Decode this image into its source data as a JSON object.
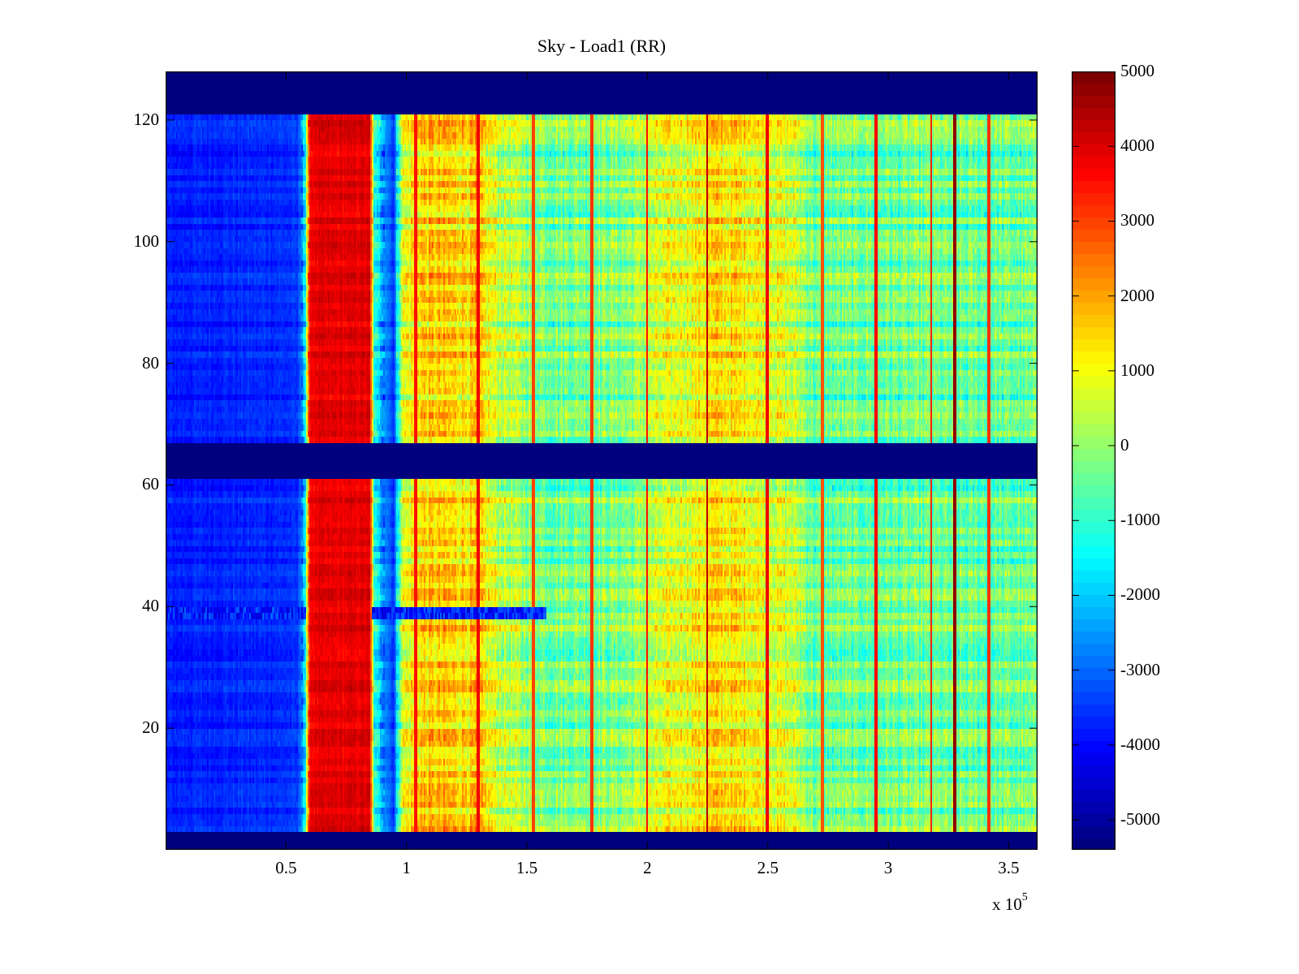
{
  "chart_data": {
    "type": "heatmap",
    "title": "Sky - Load1 (RR)",
    "xlabel": "",
    "ylabel": "",
    "x_multiplier_label": "x 10",
    "x_multiplier_exponent": "5",
    "xlim": [
      0,
      3.62
    ],
    "ylim": [
      0,
      128
    ],
    "x_ticks": [
      0.5,
      1,
      1.5,
      2,
      2.5,
      3,
      3.5
    ],
    "x_tick_labels": [
      "0.5",
      "1",
      "1.5",
      "2",
      "2.5",
      "3",
      "3.5"
    ],
    "y_ticks": [
      20,
      40,
      60,
      80,
      100,
      120
    ],
    "y_tick_labels": [
      "20",
      "40",
      "60",
      "80",
      "100",
      "120"
    ],
    "colormap": "jet",
    "clim": [
      -5400,
      5000
    ],
    "colorbar": {
      "ticks": [
        5000,
        4000,
        3000,
        2000,
        1000,
        0,
        -1000,
        -2000,
        -3000,
        -4000,
        -5000
      ],
      "tick_labels": [
        "5000",
        "4000",
        "3000",
        "2000",
        "1000",
        "0",
        "-1000",
        "-2000",
        "-3000",
        "-4000",
        "-5000"
      ],
      "placement": "right"
    },
    "empty_row_bands": [
      [
        0,
        3
      ],
      [
        61,
        67
      ],
      [
        121,
        128
      ]
    ],
    "column_profile": {
      "x": [
        0,
        0.55,
        0.58,
        0.6,
        0.85,
        0.87,
        0.95,
        0.98,
        1.05,
        1.3,
        1.38,
        1.6,
        1.9,
        2.1,
        2.3,
        2.5,
        2.62,
        2.7,
        3.0,
        3.3,
        3.62
      ],
      "value": [
        -3800,
        -3600,
        -1500,
        3800,
        3900,
        -1500,
        -3500,
        500,
        1500,
        1400,
        500,
        -300,
        -200,
        700,
        1300,
        900,
        400,
        -500,
        -400,
        -500,
        -500
      ]
    },
    "vertical_lines": {
      "x": [
        1.04,
        1.3,
        1.53,
        1.77,
        2.0,
        2.25,
        2.5,
        2.73,
        2.95,
        3.18,
        3.28,
        3.42
      ],
      "value": [
        3500,
        3800,
        3000,
        3200,
        3400,
        4200,
        3800,
        2800,
        3600,
        3300,
        4800,
        3200
      ]
    },
    "anomalous_row": {
      "y": 39,
      "value": -4500,
      "x_range": [
        0,
        1.58
      ]
    }
  }
}
